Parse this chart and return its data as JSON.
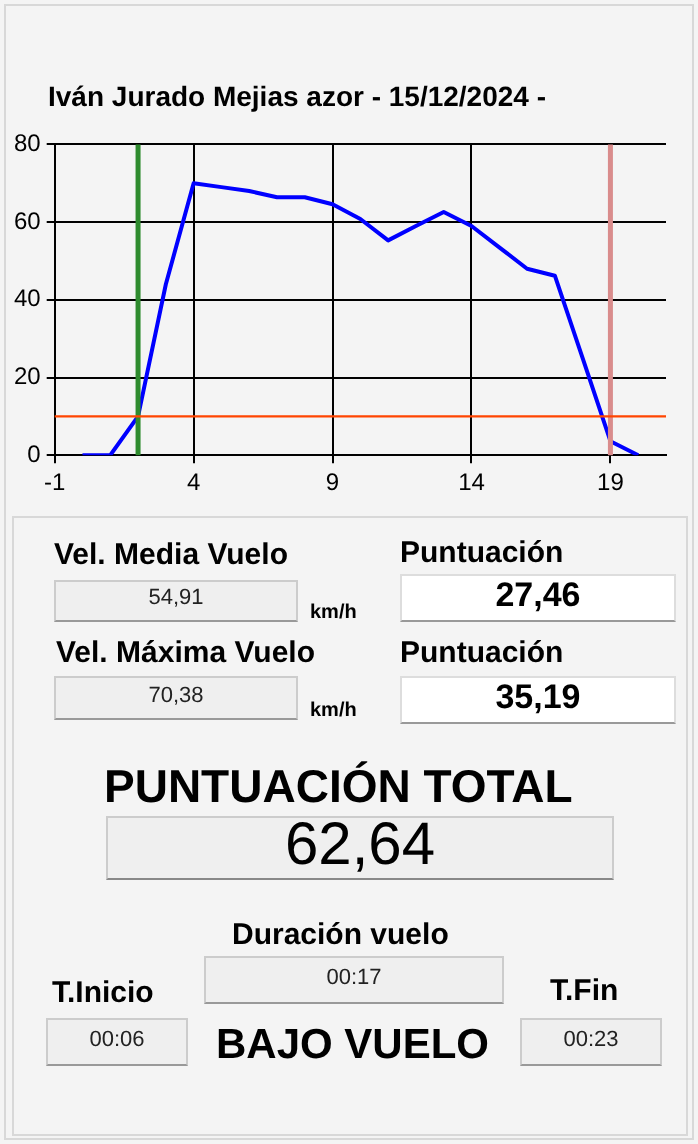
{
  "chart_data": [
    {
      "type": "line",
      "title": "Iván Jurado Mejias azor  -  15/12/2024  -",
      "x": [
        0,
        1,
        2,
        3,
        4,
        5,
        6,
        7,
        8,
        9,
        10,
        11,
        12,
        13,
        14,
        15,
        16,
        17,
        18,
        19,
        20
      ],
      "series": [
        {
          "color": "#0000ff",
          "values": [
            0,
            0,
            10,
            44,
            70,
            69,
            68,
            66.4,
            66.4,
            64.6,
            60.8,
            55.3,
            59,
            62.6,
            59,
            53.5,
            48,
            46.2,
            25,
            3.6,
            0
          ]
        }
      ],
      "xlim": [
        -1,
        21
      ],
      "xticks": [
        -1,
        4,
        9,
        14,
        19
      ],
      "ylim": [
        0,
        80
      ],
      "yticks": [
        0,
        20,
        40,
        60,
        80
      ],
      "ref_lines": [
        {
          "axis": "x",
          "value": 2,
          "color": "#2e8b2e"
        },
        {
          "axis": "x",
          "value": 19,
          "color": "#d98c8c"
        },
        {
          "axis": "y",
          "value": 10,
          "color": "#ff4500"
        }
      ],
      "grid": true,
      "legend": false,
      "marker": "none",
      "line_style": "solid"
    },
    {
      "type": "other",
      "annotations": [
        "Vel. Media Vuelo",
        "54,91",
        "km/h",
        "Puntuación",
        "27,46",
        "Vel. Máxima Vuelo",
        "70,38",
        "km/h",
        "Puntuación",
        "35,19",
        "PUNTUACIÓN TOTAL",
        "62,64",
        "Duración vuelo",
        "00:17",
        "T.Inicio",
        "00:06",
        "BAJO VUELO",
        "T.Fin",
        "00:23"
      ]
    }
  ]
}
